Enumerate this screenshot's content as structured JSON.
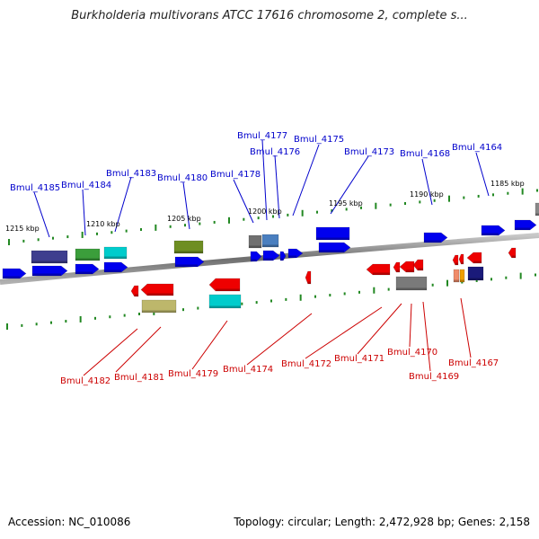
{
  "title": "Burkholderia multivorans ATCC 17616 chromosome 2, complete s...",
  "footer": {
    "accession": "Accession: NC_010086",
    "topology": "Topology: circular; Length: 2,472,928 bp; Genes: 2,158"
  },
  "colors": {
    "forward_label": "#0000cc",
    "reverse_label": "#cc0000",
    "tick": "#228822",
    "backbone": "#8a8a8a",
    "forward_gene": "#0000ee",
    "reverse_gene": "#ee0000"
  },
  "scale_labels": [
    {
      "text": "1215 kbp"
    },
    {
      "text": "1210 kbp"
    },
    {
      "text": "1205 kbp"
    },
    {
      "text": "1200 kbp"
    },
    {
      "text": "1195 kbp"
    },
    {
      "text": "1190 kbp"
    },
    {
      "text": "1185 kbp"
    }
  ],
  "forward_labels": [
    {
      "text": "Bmul_4185"
    },
    {
      "text": "Bmul_4184"
    },
    {
      "text": "Bmul_4183"
    },
    {
      "text": "Bmul_4180"
    },
    {
      "text": "Bmul_4178"
    },
    {
      "text": "Bmul_4177"
    },
    {
      "text": "Bmul_4176"
    },
    {
      "text": "Bmul_4175"
    },
    {
      "text": "Bmul_4173"
    },
    {
      "text": "Bmul_4168"
    },
    {
      "text": "Bmul_4164"
    }
  ],
  "reverse_labels": [
    {
      "text": "Bmul_4182"
    },
    {
      "text": "Bmul_4181"
    },
    {
      "text": "Bmul_4179"
    },
    {
      "text": "Bmul_4174"
    },
    {
      "text": "Bmul_4172"
    },
    {
      "text": "Bmul_4171"
    },
    {
      "text": "Bmul_4170"
    },
    {
      "text": "Bmul_4169"
    },
    {
      "text": "Bmul_4167"
    }
  ]
}
